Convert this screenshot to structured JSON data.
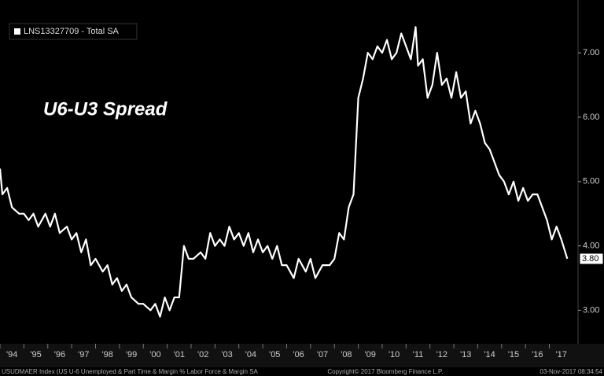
{
  "chart_data": {
    "type": "line",
    "legend_label": "LNS13327709 - Total SA",
    "annotation": "U6-U3 Spread",
    "footer_left": "USUDMAER Index (US U-6 Unemployed & Part Time & Margin % Labor Force & Margin SA",
    "footer_center": "Copyright© 2017 Bloomberg Finance L.P.",
    "footer_right": "03-Nov-2017 08:34:54",
    "y_axis_side": "right",
    "grid": false,
    "xlim": [
      1994.0,
      2018.2
    ],
    "ylim": [
      2.48,
      7.82
    ],
    "xticks": [
      {
        "value": 1994,
        "label": "'94"
      },
      {
        "value": 1995,
        "label": "'95"
      },
      {
        "value": 1996,
        "label": "'96"
      },
      {
        "value": 1997,
        "label": "'97"
      },
      {
        "value": 1998,
        "label": "'98"
      },
      {
        "value": 1999,
        "label": "'99"
      },
      {
        "value": 2000,
        "label": "'00"
      },
      {
        "value": 2001,
        "label": "'01"
      },
      {
        "value": 2002,
        "label": "'02"
      },
      {
        "value": 2003,
        "label": "'03"
      },
      {
        "value": 2004,
        "label": "'04"
      },
      {
        "value": 2005,
        "label": "'05"
      },
      {
        "value": 2006,
        "label": "'06"
      },
      {
        "value": 2007,
        "label": "'07"
      },
      {
        "value": 2008,
        "label": "'08"
      },
      {
        "value": 2009,
        "label": "'09"
      },
      {
        "value": 2010,
        "label": "'10"
      },
      {
        "value": 2011,
        "label": "'11"
      },
      {
        "value": 2012,
        "label": "'12"
      },
      {
        "value": 2013,
        "label": "'13"
      },
      {
        "value": 2014,
        "label": "'14"
      },
      {
        "value": 2015,
        "label": "'15"
      },
      {
        "value": 2016,
        "label": "'16"
      },
      {
        "value": 2017,
        "label": "'17"
      }
    ],
    "yticks": [
      {
        "value": 3,
        "label": "3.00"
      },
      {
        "value": 4,
        "label": "4.00"
      },
      {
        "value": 5,
        "label": "5.00"
      },
      {
        "value": 6,
        "label": "6.00"
      },
      {
        "value": 7,
        "label": "7.00"
      }
    ],
    "series": [
      {
        "name": "LNS13327709 - Total SA",
        "color": "#ffffff",
        "x": [
          1994.0,
          1994.1,
          1994.3,
          1994.5,
          1994.8,
          1995.0,
          1995.2,
          1995.4,
          1995.6,
          1995.9,
          1996.1,
          1996.3,
          1996.5,
          1996.8,
          1997.0,
          1997.2,
          1997.4,
          1997.6,
          1997.8,
          1998.0,
          1998.3,
          1998.5,
          1998.7,
          1998.9,
          1999.1,
          1999.3,
          1999.5,
          1999.8,
          2000.0,
          2000.3,
          2000.5,
          2000.7,
          2000.9,
          2001.1,
          2001.3,
          2001.5,
          2001.7,
          2001.9,
          2002.1,
          2002.4,
          2002.6,
          2002.8,
          2003.0,
          2003.2,
          2003.4,
          2003.6,
          2003.8,
          2004.0,
          2004.2,
          2004.4,
          2004.6,
          2004.8,
          2005.0,
          2005.2,
          2005.4,
          2005.6,
          2005.8,
          2006.0,
          2006.3,
          2006.5,
          2006.8,
          2007.0,
          2007.2,
          2007.5,
          2007.8,
          2008.0,
          2008.2,
          2008.4,
          2008.6,
          2008.8,
          2009.0,
          2009.2,
          2009.4,
          2009.6,
          2009.8,
          2010.0,
          2010.2,
          2010.4,
          2010.6,
          2010.8,
          2011.0,
          2011.2,
          2011.4,
          2011.5,
          2011.7,
          2011.9,
          2012.1,
          2012.3,
          2012.5,
          2012.7,
          2012.9,
          2013.1,
          2013.3,
          2013.5,
          2013.7,
          2013.9,
          2014.1,
          2014.3,
          2014.5,
          2014.7,
          2014.9,
          2015.1,
          2015.3,
          2015.5,
          2015.7,
          2015.9,
          2016.1,
          2016.3,
          2016.5,
          2016.7,
          2016.9,
          2017.1,
          2017.3,
          2017.5,
          2017.75
        ],
        "values": [
          5.2,
          4.8,
          4.9,
          4.6,
          4.5,
          4.5,
          4.4,
          4.5,
          4.3,
          4.5,
          4.3,
          4.5,
          4.2,
          4.3,
          4.1,
          4.2,
          3.9,
          4.1,
          3.7,
          3.8,
          3.6,
          3.7,
          3.4,
          3.5,
          3.3,
          3.4,
          3.2,
          3.1,
          3.1,
          3.0,
          3.1,
          2.9,
          3.2,
          3.0,
          3.2,
          3.2,
          4.0,
          3.8,
          3.8,
          3.9,
          3.8,
          4.2,
          4.0,
          4.1,
          4.0,
          4.3,
          4.1,
          4.2,
          4.0,
          4.2,
          3.9,
          4.1,
          3.9,
          4.0,
          3.8,
          4.0,
          3.7,
          3.7,
          3.5,
          3.8,
          3.6,
          3.8,
          3.5,
          3.7,
          3.7,
          3.8,
          4.2,
          4.1,
          4.6,
          4.8,
          6.3,
          6.6,
          7.0,
          6.9,
          7.1,
          7.0,
          7.2,
          6.9,
          7.0,
          7.3,
          7.1,
          6.9,
          7.4,
          6.8,
          6.9,
          6.3,
          6.5,
          7.0,
          6.5,
          6.6,
          6.3,
          6.7,
          6.3,
          6.4,
          5.9,
          6.1,
          5.9,
          5.6,
          5.5,
          5.3,
          5.1,
          5.0,
          4.8,
          5.0,
          4.7,
          4.9,
          4.7,
          4.8,
          4.8,
          4.6,
          4.4,
          4.1,
          4.3,
          4.1,
          3.8
        ],
        "last_value_label": "3.80"
      }
    ]
  }
}
